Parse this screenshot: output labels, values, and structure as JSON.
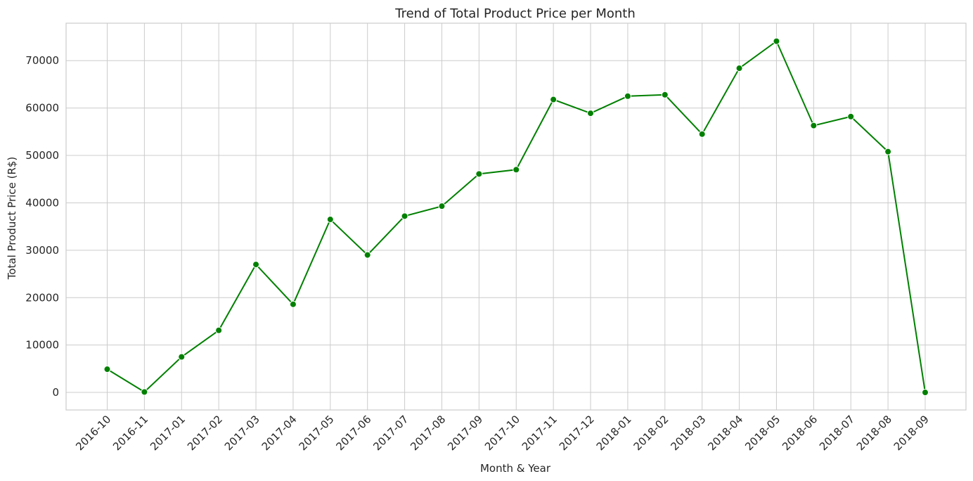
{
  "chart_data": {
    "type": "line",
    "title": "Trend of Total Product Price per Month",
    "xlabel": "Month & Year",
    "ylabel": "Total Product Price (R$)",
    "categories": [
      "2016-10",
      "2016-11",
      "2017-01",
      "2017-02",
      "2017-03",
      "2017-04",
      "2017-05",
      "2017-06",
      "2017-07",
      "2017-08",
      "2017-09",
      "2017-10",
      "2017-11",
      "2017-12",
      "2018-01",
      "2018-02",
      "2018-03",
      "2018-04",
      "2018-05",
      "2018-06",
      "2018-07",
      "2018-08",
      "2018-09"
    ],
    "values": [
      4900,
      100,
      7500,
      13100,
      27000,
      18600,
      36500,
      29000,
      37200,
      39300,
      46100,
      47000,
      61800,
      58900,
      62500,
      62800,
      54500,
      68400,
      74100,
      56300,
      58200,
      50800,
      0
    ],
    "y_ticks": [
      0,
      10000,
      20000,
      30000,
      40000,
      50000,
      60000,
      70000
    ],
    "ylim": [
      -3700,
      77900
    ],
    "grid": true,
    "series_color": "#008000",
    "marker": "circle"
  }
}
